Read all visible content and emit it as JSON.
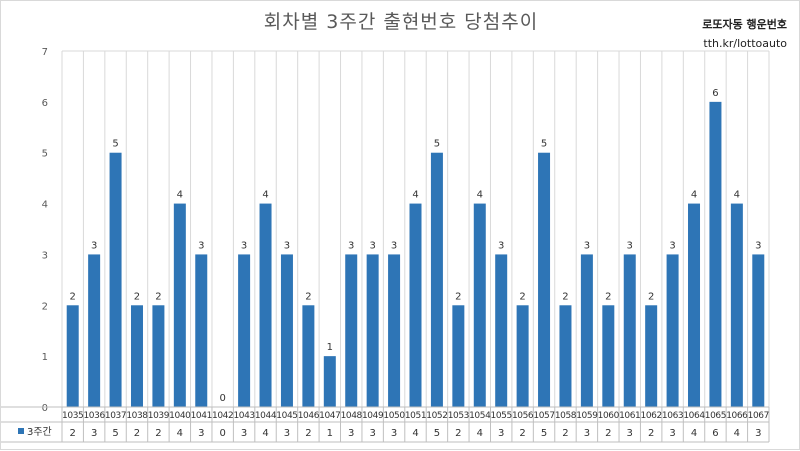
{
  "chart_data": {
    "type": "bar",
    "title": "회차별 3주간 출현번호 당첨추이",
    "xlabel": "",
    "ylabel": "",
    "ylim": [
      0,
      7
    ],
    "yticks": [
      0,
      1,
      2,
      3,
      4,
      5,
      6,
      7
    ],
    "grid": "vertical",
    "legend": "data-table",
    "categories": [
      "1035",
      "1036",
      "1037",
      "1038",
      "1039",
      "1040",
      "1041",
      "1042",
      "1043",
      "1044",
      "1045",
      "1046",
      "1047",
      "1048",
      "1049",
      "1050",
      "1051",
      "1052",
      "1053",
      "1054",
      "1055",
      "1056",
      "1057",
      "1058",
      "1059",
      "1060",
      "1061",
      "1062",
      "1063",
      "1064",
      "1065",
      "1066",
      "1067"
    ],
    "series": [
      {
        "name": "3주간",
        "color": "#2e75b6",
        "values": [
          2,
          3,
          5,
          2,
          2,
          4,
          3,
          0,
          3,
          4,
          3,
          2,
          1,
          3,
          3,
          3,
          4,
          5,
          2,
          4,
          3,
          2,
          5,
          2,
          3,
          2,
          3,
          2,
          3,
          4,
          6,
          4,
          3
        ]
      }
    ]
  },
  "brand": {
    "name": "로또자동 행운번호",
    "url": "tth.kr/lottoauto"
  },
  "colors": {
    "bar": "#2e75b6",
    "grid": "#d9d9d9",
    "table_border": "#bfbfbf"
  }
}
